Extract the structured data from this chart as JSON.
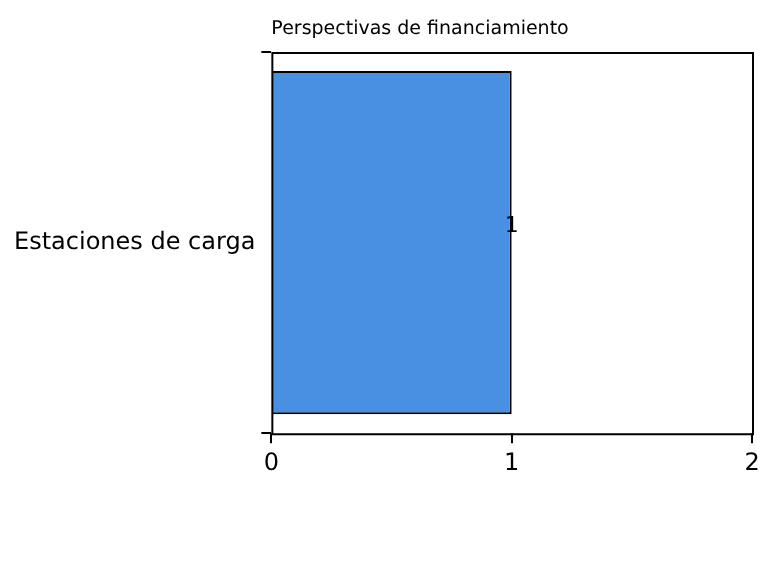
{
  "chart_data": {
    "type": "bar",
    "orientation": "horizontal",
    "title": "Perspectivas de financiamiento",
    "categories": [
      "Estaciones de carga"
    ],
    "values": [
      1
    ],
    "color": "#4a90e2",
    "xlim": [
      0,
      2
    ],
    "xticks": [
      0,
      1,
      2
    ],
    "grid": false,
    "data_labels": true
  }
}
